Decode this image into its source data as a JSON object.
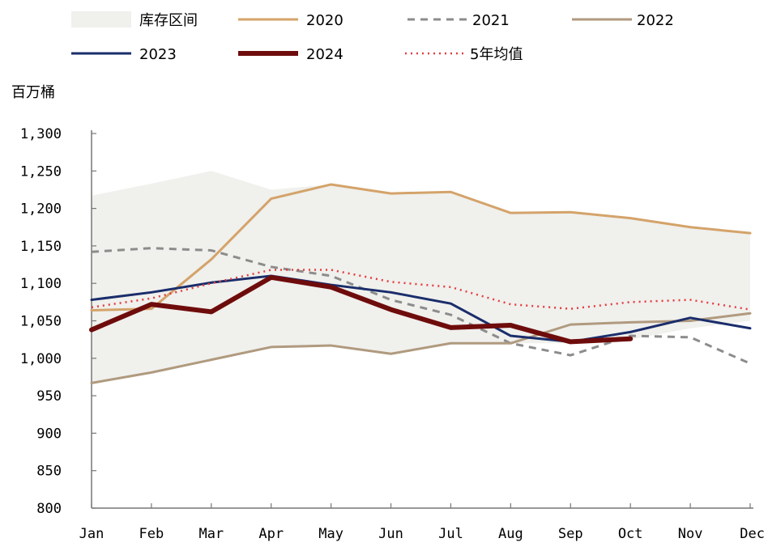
{
  "chart_data": {
    "type": "line",
    "ylabel": "百万桶",
    "ylim": [
      800,
      1300
    ],
    "yticks": [
      800,
      850,
      900,
      950,
      1000,
      1050,
      1100,
      1150,
      1200,
      1250,
      1300
    ],
    "ytick_labels": [
      "800",
      "850",
      "900",
      "950",
      "1,000",
      "1,050",
      "1,100",
      "1,150",
      "1,200",
      "1,250",
      "1,300"
    ],
    "categories": [
      "Jan",
      "Feb",
      "Mar",
      "Apr",
      "May",
      "Jun",
      "Jul",
      "Aug",
      "Sep",
      "Oct",
      "Nov",
      "Dec"
    ],
    "band": {
      "name": "库存区间",
      "color": "#f0f0ed",
      "upper": [
        1217,
        1233,
        1250,
        1225,
        1232,
        1220,
        1222,
        1194,
        1195,
        1187,
        1175,
        1167
      ],
      "lower": [
        965,
        980,
        998,
        1015,
        1017,
        1005,
        1020,
        1020,
        1020,
        1025,
        1040,
        1050
      ]
    },
    "series": [
      {
        "name": "2020",
        "color": "#d4a36a",
        "width": 3,
        "dash": "",
        "values": [
          1064,
          1066,
          1132,
          1213,
          1232,
          1220,
          1222,
          1194,
          1195,
          1187,
          1175,
          1167
        ]
      },
      {
        "name": "2021",
        "color": "#8c8c8c",
        "width": 3,
        "dash": "9,7",
        "values": [
          1142,
          1147,
          1144,
          1122,
          1110,
          1078,
          1058,
          1020,
          1004,
          1030,
          1028,
          993
        ]
      },
      {
        "name": "2022",
        "color": "#b09a7e",
        "width": 3,
        "dash": "",
        "values": [
          967,
          981,
          998,
          1015,
          1017,
          1006,
          1020,
          1020,
          1045,
          1048,
          1050,
          1060
        ]
      },
      {
        "name": "2023",
        "color": "#1a2d6b",
        "width": 3,
        "dash": "",
        "values": [
          1078,
          1088,
          1101,
          1110,
          1098,
          1088,
          1073,
          1030,
          1022,
          1035,
          1054,
          1040
        ]
      },
      {
        "name": "2024",
        "color": "#6e0c0c",
        "width": 6,
        "dash": "",
        "values": [
          1038,
          1072,
          1062,
          1108,
          1095,
          1065,
          1041,
          1044,
          1022,
          1026,
          null,
          null
        ]
      },
      {
        "name": "5年均值",
        "color": "#e23d3d",
        "width": 2.5,
        "dash": "2,5",
        "values": [
          1068,
          1080,
          1100,
          1118,
          1118,
          1102,
          1095,
          1072,
          1066,
          1075,
          1078,
          1065
        ]
      }
    ],
    "legend_position": "top",
    "grid": false
  }
}
